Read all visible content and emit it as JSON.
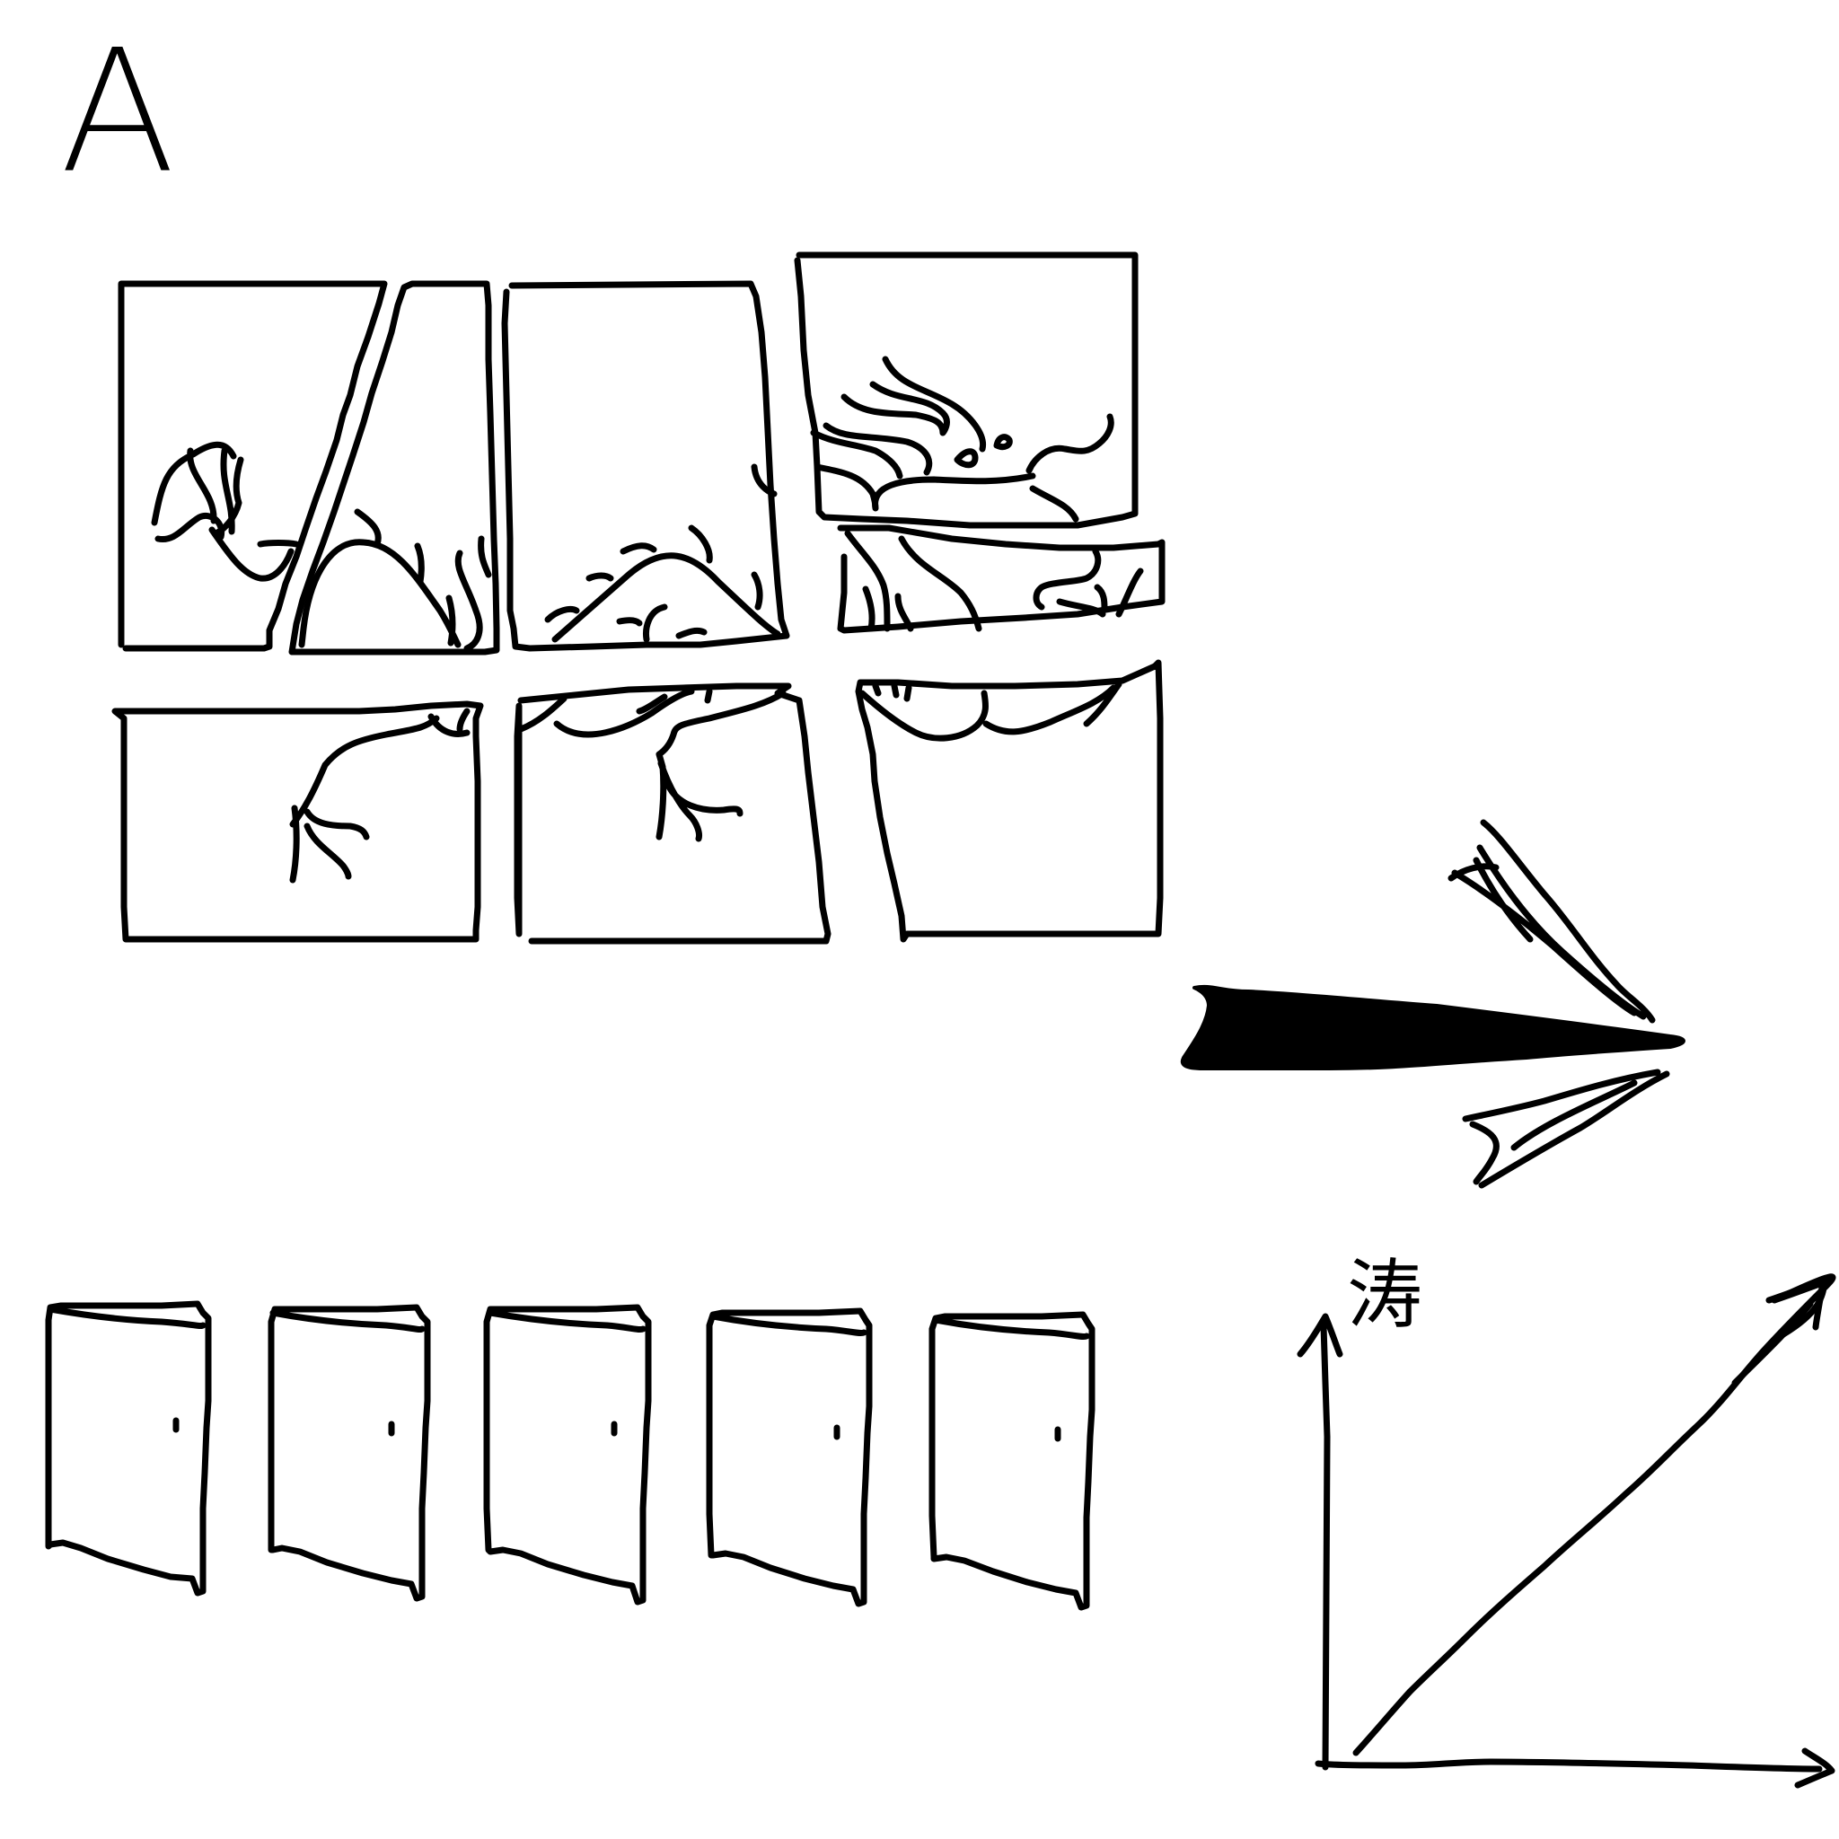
{
  "figure": {
    "panel_label": "A",
    "axis_label": "涛"
  },
  "colors": {
    "ink": "#000000",
    "background": "#ffffff"
  },
  "icons": {
    "grid": "fragmented-landscape-grid",
    "arrow": "right-arrow-icon",
    "doors": "door-icon",
    "graph": "increasing-trend-graph"
  },
  "door_count": 5
}
